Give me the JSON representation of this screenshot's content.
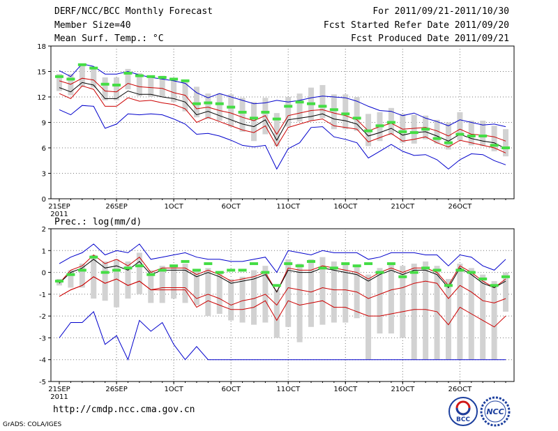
{
  "header": {
    "title": "DERF/NCC/BCC Monthly Forecast",
    "member_size": "Member Size=40",
    "variable": "Mean Surf. Temp.: °C",
    "period": "For 2011/09/21-2011/10/30",
    "started": "Fcst Started Refer Date 2011/09/20",
    "produced": "Fcst Produced Date 2011/09/21"
  },
  "footer": {
    "url": "http://cmdp.ncc.cma.gov.cn",
    "grads": "GrADS: COLA/IGES",
    "logo1_text": "BCC",
    "logo2_text": "NCC"
  },
  "colors": {
    "max_line": "#0000cc",
    "pct_line": "#cc0000",
    "mean_line": "#000000",
    "box": "#d2d2d2",
    "obs": "#44dd44"
  },
  "chart_data": [
    {
      "type": "line",
      "title": "Mean Surf. Temp.: °C",
      "x_labels": [
        "21SEP",
        "26SEP",
        "1OCT",
        "6OCT",
        "11OCT",
        "16OCT",
        "21OCT",
        "26OCT"
      ],
      "x_sublabel": "2011",
      "ylim": [
        0,
        18
      ],
      "yticks": [
        0,
        3,
        6,
        9,
        12,
        15,
        18
      ],
      "days": 40,
      "series": [
        {
          "name": "max",
          "values": [
            15.1,
            14.4,
            15.9,
            15.6,
            14.7,
            14.7,
            15.0,
            14.6,
            14.3,
            14.1,
            13.9,
            13.6,
            12.5,
            11.9,
            12.4,
            12.0,
            11.6,
            11.2,
            11.3,
            11.6,
            11.4,
            11.6,
            11.9,
            12.1,
            12.0,
            11.9,
            11.5,
            10.9,
            10.4,
            10.3,
            9.8,
            10.1,
            9.5,
            9.1,
            8.6,
            9.3,
            9.0,
            8.7,
            8.8,
            8.5
          ]
        },
        {
          "name": "p90",
          "values": [
            13.9,
            13.5,
            14.2,
            14.0,
            12.7,
            12.6,
            13.6,
            13.2,
            13.1,
            13.0,
            12.5,
            12.2,
            10.6,
            10.8,
            10.4,
            10.1,
            9.6,
            9.2,
            9.8,
            7.6,
            9.8,
            10.1,
            10.4,
            10.5,
            10.1,
            9.8,
            9.3,
            8.0,
            8.5,
            8.9,
            8.2,
            8.3,
            8.4,
            8.0,
            7.4,
            8.2,
            7.6,
            7.5,
            7.3,
            6.8
          ]
        },
        {
          "name": "mean",
          "values": [
            13.1,
            12.6,
            13.7,
            13.4,
            11.8,
            11.8,
            12.7,
            12.3,
            12.3,
            12.0,
            11.8,
            11.4,
            9.9,
            10.3,
            9.8,
            9.3,
            8.8,
            8.5,
            9.3,
            6.9,
            9.3,
            9.5,
            9.7,
            10.0,
            9.4,
            9.2,
            8.8,
            7.4,
            7.8,
            8.3,
            7.5,
            7.8,
            7.9,
            7.4,
            6.8,
            7.6,
            7.1,
            6.8,
            6.6,
            5.9
          ]
        },
        {
          "name": "p10",
          "values": [
            12.4,
            11.8,
            13.3,
            12.9,
            10.9,
            10.9,
            11.9,
            11.5,
            11.6,
            11.3,
            11.1,
            10.6,
            9.0,
            9.6,
            9.1,
            8.6,
            8.1,
            7.8,
            8.6,
            6.2,
            8.4,
            8.8,
            9.2,
            9.4,
            8.6,
            8.4,
            8.2,
            6.7,
            7.2,
            7.7,
            6.8,
            7.0,
            7.3,
            6.6,
            6.1,
            6.9,
            6.6,
            6.3,
            6.0,
            5.4
          ]
        },
        {
          "name": "min",
          "values": [
            10.5,
            9.9,
            11.0,
            10.9,
            8.3,
            8.8,
            10.0,
            9.9,
            10.0,
            9.9,
            9.4,
            8.8,
            7.6,
            7.7,
            7.4,
            6.9,
            6.3,
            6.1,
            6.3,
            3.5,
            5.9,
            6.6,
            8.4,
            8.5,
            7.3,
            7.0,
            6.6,
            4.8,
            5.6,
            6.4,
            5.6,
            5.1,
            5.2,
            4.6,
            3.5,
            4.6,
            5.3,
            5.2,
            4.5,
            4.0
          ]
        },
        {
          "name": "box_top",
          "values": [
            14.7,
            14.7,
            15.8,
            15.5,
            14.3,
            14.3,
            15.3,
            14.8,
            14.5,
            14.5,
            14.2,
            13.9,
            13.2,
            12.4,
            12.4,
            12.3,
            11.9,
            11.4,
            11.9,
            10.1,
            12.0,
            12.4,
            13.1,
            13.4,
            12.3,
            12.3,
            12.0,
            10.0,
            10.2,
            10.7,
            10.0,
            9.9,
            9.8,
            9.3,
            9.0,
            10.2,
            9.2,
            9.2,
            8.6,
            8.2
          ]
        },
        {
          "name": "box_bottom",
          "values": [
            12.7,
            12.2,
            13.2,
            13.1,
            11.6,
            11.6,
            12.9,
            12.1,
            12.0,
            12.0,
            11.4,
            10.3,
            9.6,
            9.4,
            9.2,
            8.5,
            7.9,
            6.8,
            7.6,
            6.2,
            8.5,
            9.1,
            9.2,
            9.5,
            8.2,
            8.2,
            8.0,
            6.2,
            6.8,
            7.5,
            6.6,
            6.5,
            7.0,
            6.5,
            5.8,
            6.9,
            6.3,
            6.2,
            5.6,
            5.0
          ]
        },
        {
          "name": "obs",
          "values": [
            14.4,
            14.1,
            15.8,
            15.4,
            13.5,
            13.4,
            14.8,
            14.5,
            14.4,
            14.3,
            14.1,
            13.9,
            11.2,
            11.3,
            11.2,
            10.8,
            10.2,
            9.5,
            10.2,
            9.4,
            10.9,
            11.4,
            11.2,
            10.9,
            10.5,
            10.0,
            9.5,
            8.0,
            8.6,
            9.0,
            7.9,
            7.8,
            8.2,
            7.1,
            6.6,
            7.6,
            7.4,
            7.4,
            6.3,
            6.0
          ]
        }
      ]
    },
    {
      "type": "line",
      "title": "Prec.: log(mm/d)",
      "x_labels": [
        "21SEP",
        "26SEP",
        "1OCT",
        "6OCT",
        "11OCT",
        "16OCT",
        "21OCT",
        "26OCT"
      ],
      "x_sublabel": "2011",
      "ylim": [
        -5,
        2
      ],
      "yticks": [
        -5,
        -4,
        -3,
        -2,
        -1,
        0,
        1,
        2
      ],
      "days": 40,
      "series": [
        {
          "name": "max",
          "values": [
            0.4,
            0.7,
            0.9,
            1.3,
            0.8,
            1.0,
            0.9,
            1.3,
            0.6,
            0.7,
            0.8,
            0.9,
            0.7,
            0.6,
            0.6,
            0.5,
            0.5,
            0.6,
            0.7,
            0.0,
            1.0,
            0.9,
            0.8,
            1.0,
            0.9,
            0.9,
            0.9,
            0.6,
            0.7,
            0.9,
            0.9,
            0.9,
            0.8,
            0.8,
            0.3,
            0.8,
            0.7,
            0.3,
            0.1,
            0.6
          ]
        },
        {
          "name": "p90",
          "values": [
            -0.5,
            0.1,
            0.3,
            0.8,
            0.4,
            0.6,
            0.3,
            0.7,
            0.0,
            0.2,
            0.2,
            0.2,
            -0.1,
            0.1,
            -0.1,
            -0.4,
            -0.3,
            -0.2,
            0.0,
            -0.9,
            0.2,
            0.1,
            0.1,
            0.3,
            0.2,
            0.1,
            0.0,
            -0.3,
            0.0,
            0.2,
            0.0,
            0.2,
            0.2,
            0.0,
            -0.6,
            0.3,
            0.0,
            -0.4,
            -0.7,
            -0.3
          ]
        },
        {
          "name": "mean",
          "values": [
            -0.5,
            0.0,
            0.2,
            0.6,
            0.2,
            0.3,
            0.1,
            0.5,
            -0.1,
            0.1,
            0.1,
            0.1,
            -0.2,
            0.0,
            -0.2,
            -0.5,
            -0.4,
            -0.3,
            -0.1,
            -0.9,
            0.1,
            0.0,
            0.0,
            0.2,
            0.1,
            0.0,
            -0.1,
            -0.4,
            -0.1,
            0.1,
            -0.1,
            0.1,
            0.1,
            -0.1,
            -0.7,
            0.2,
            -0.1,
            -0.5,
            -0.7,
            -0.4
          ]
        },
        {
          "name": "p10",
          "values": [
            -1.1,
            -0.8,
            -0.6,
            -0.2,
            -0.5,
            -0.3,
            -0.6,
            -0.4,
            -0.8,
            -0.7,
            -0.7,
            -0.7,
            -1.2,
            -1.0,
            -1.2,
            -1.5,
            -1.3,
            -1.2,
            -1.0,
            -1.5,
            -0.7,
            -0.8,
            -0.9,
            -0.7,
            -0.8,
            -0.8,
            -0.9,
            -1.2,
            -1.0,
            -0.8,
            -0.7,
            -0.5,
            -0.4,
            -0.5,
            -1.2,
            -0.6,
            -0.9,
            -1.3,
            -1.4,
            -1.2
          ]
        },
        {
          "name": "p10b",
          "values": [
            -1.1,
            -0.8,
            -0.6,
            -0.2,
            -0.5,
            -0.3,
            -0.6,
            -0.4,
            -0.8,
            -0.8,
            -0.8,
            -0.8,
            -1.6,
            -1.3,
            -1.5,
            -1.7,
            -1.7,
            -1.6,
            -1.3,
            -2.2,
            -1.3,
            -1.5,
            -1.4,
            -1.3,
            -1.6,
            -1.6,
            -1.8,
            -2.0,
            -2.0,
            -1.9,
            -1.8,
            -1.7,
            -1.7,
            -1.8,
            -2.4,
            -1.6,
            -1.9,
            -2.2,
            -2.5,
            -2.0
          ]
        },
        {
          "name": "min",
          "values": [
            -3.0,
            -2.3,
            -2.3,
            -1.8,
            -3.3,
            -2.9,
            -4.0,
            -2.2,
            -2.7,
            -2.3,
            -3.3,
            -4.0,
            -3.4,
            -4.0,
            -4.0,
            -4.0,
            -4.0,
            -4.0,
            -4.0,
            -4.0,
            -4.0,
            -4.0,
            -4.0,
            -4.0,
            -4.0,
            -4.0,
            -4.0,
            -4.0,
            -4.0,
            -4.0,
            -4.0,
            -4.0,
            -4.0,
            -4.0,
            -4.0,
            -4.0,
            -4.0,
            -4.0,
            -4.0,
            -4.0
          ]
        },
        {
          "name": "box_top",
          "values": [
            -0.3,
            0.1,
            0.4,
            0.8,
            0.5,
            0.6,
            0.5,
            0.9,
            0.1,
            0.3,
            0.3,
            0.4,
            0.1,
            0.2,
            0.0,
            -0.3,
            -0.2,
            0.1,
            0.3,
            -0.8,
            0.6,
            0.4,
            0.6,
            0.7,
            0.5,
            0.4,
            0.3,
            -0.1,
            0.2,
            0.4,
            0.3,
            0.4,
            0.5,
            0.3,
            -0.3,
            0.4,
            0.2,
            -0.1,
            -0.4,
            0.0
          ]
        },
        {
          "name": "box_bottom",
          "values": [
            -0.6,
            -0.7,
            -0.7,
            -1.2,
            -1.3,
            -1.6,
            -1.2,
            -1.0,
            -1.4,
            -1.4,
            -1.2,
            -1.4,
            -1.5,
            -2.0,
            -1.9,
            -2.2,
            -2.3,
            -2.4,
            -2.3,
            -3.0,
            -2.5,
            -3.2,
            -2.5,
            -2.4,
            -2.3,
            -2.3,
            -2.1,
            -4.0,
            -2.8,
            -2.8,
            -3.0,
            -4.0,
            -4.0,
            -4.0,
            -4.0,
            -4.0,
            -4.0,
            -4.0,
            -4.0,
            -1.8
          ]
        },
        {
          "name": "obs",
          "values": [
            -0.4,
            -0.1,
            0.1,
            0.7,
            0.0,
            0.1,
            0.2,
            0.3,
            -0.1,
            0.1,
            0.3,
            0.5,
            0.1,
            0.4,
            0.0,
            0.1,
            0.1,
            0.4,
            0.0,
            -0.6,
            0.4,
            0.3,
            0.5,
            0.2,
            0.2,
            0.4,
            0.3,
            0.4,
            0.0,
            0.4,
            -0.2,
            0.0,
            0.2,
            0.1,
            -0.6,
            0.1,
            0.0,
            -0.3,
            -0.6,
            -0.2
          ]
        }
      ]
    }
  ]
}
